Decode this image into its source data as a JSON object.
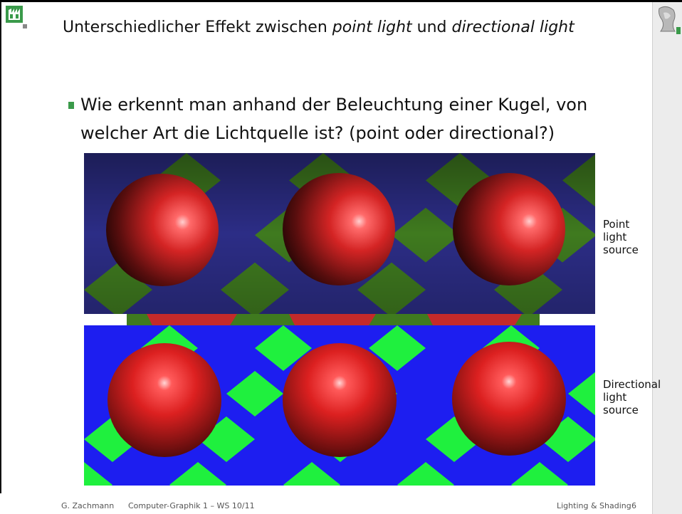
{
  "slide": {
    "title_prefix": "Unterschiedlicher Effekt zwischen ",
    "title_em1": "point light",
    "title_mid": " und ",
    "title_em2": "directional light",
    "bullet": "Wie erkennt man anhand der Beleuchtung einer Kugel, von welcher Art die Lichtquelle ist? (point oder directional?)"
  },
  "images": {
    "top_label": "Point\nlight\nsource",
    "bottom_label": "Directional\nlight\nsource"
  },
  "footer": {
    "author": "G. Zachmann",
    "course": "Computer-Graphik 1 – WS 10/11",
    "topic": "Lighting & Shading",
    "page": "6"
  },
  "colors": {
    "accent": "#3a9a4a",
    "point_blue": "#2c2d86",
    "point_green": "#3f7a1f",
    "dir_blue": "#1d1ef0",
    "dir_green": "#1ff03e",
    "sphere_red": "#e52828"
  }
}
